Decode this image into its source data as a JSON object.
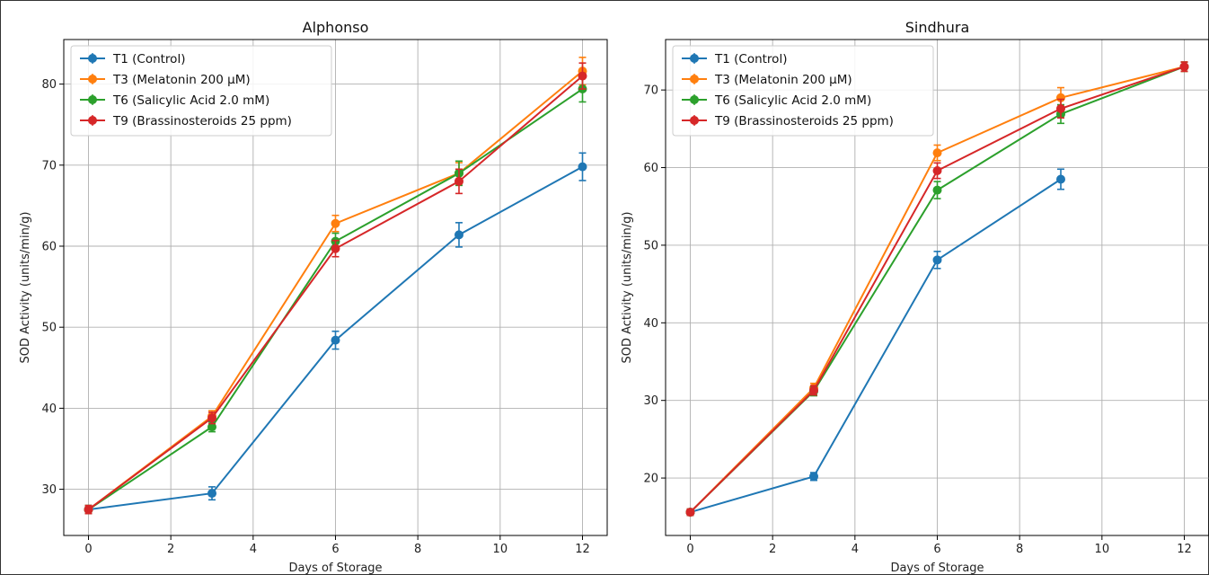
{
  "chart_data": [
    {
      "type": "line",
      "title": "Alphonso",
      "xlabel": "Days of Storage",
      "ylabel": "SOD Activity (units/min/g)",
      "xlim": [
        -0.6,
        12.6
      ],
      "ylim": [
        24.3,
        85.5
      ],
      "xticks": [
        0,
        2,
        4,
        6,
        8,
        10,
        12
      ],
      "yticks": [
        30,
        40,
        50,
        60,
        70,
        80
      ],
      "grid": true,
      "legend": "top-left",
      "series": [
        {
          "name": "T1 (Control)",
          "color": "#1f77b4",
          "x": [
            0,
            3,
            6,
            9,
            12
          ],
          "y": [
            27.5,
            29.5,
            48.4,
            61.4,
            69.8
          ],
          "err": [
            0.5,
            0.8,
            1.1,
            1.5,
            1.7
          ]
        },
        {
          "name": "T3 (Melatonin 200 μM)",
          "color": "#ff7f0e",
          "x": [
            0,
            3,
            6,
            9,
            12
          ],
          "y": [
            27.5,
            39.0,
            62.8,
            69.0,
            81.6
          ],
          "err": [
            0.5,
            0.7,
            1.0,
            1.3,
            1.7
          ]
        },
        {
          "name": "T6 (Salicylic Acid 2.0 mM)",
          "color": "#2ca02c",
          "x": [
            0,
            3,
            6,
            9,
            12
          ],
          "y": [
            27.5,
            37.7,
            60.6,
            69.0,
            79.4
          ],
          "err": [
            0.5,
            0.6,
            1.0,
            1.5,
            1.6
          ]
        },
        {
          "name": "T9 (Brassinosteroids 25 ppm)",
          "color": "#d62728",
          "x": [
            0,
            3,
            6,
            9,
            12
          ],
          "y": [
            27.5,
            38.8,
            59.7,
            68.0,
            81.0
          ],
          "err": [
            0.5,
            0.7,
            1.0,
            1.5,
            1.6
          ]
        }
      ]
    },
    {
      "type": "line",
      "title": "Sindhura",
      "xlabel": "Days of Storage",
      "ylabel": "SOD Activity (units/min/g)",
      "xlim": [
        -0.6,
        12.6
      ],
      "ylim": [
        12.6,
        76.5
      ],
      "xticks": [
        0,
        2,
        4,
        6,
        8,
        10,
        12
      ],
      "yticks": [
        20,
        30,
        40,
        50,
        60,
        70
      ],
      "grid": true,
      "legend": "top-left",
      "series": [
        {
          "name": "T1 (Control)",
          "color": "#1f77b4",
          "x": [
            0,
            3,
            6,
            9
          ],
          "y": [
            15.6,
            20.2,
            48.1,
            58.5
          ],
          "err": [
            0.4,
            0.5,
            1.1,
            1.3
          ]
        },
        {
          "name": "T3 (Melatonin 200 μM)",
          "color": "#ff7f0e",
          "x": [
            0,
            3,
            6,
            9,
            12
          ],
          "y": [
            15.6,
            31.6,
            61.9,
            69.0,
            73.0
          ],
          "err": [
            0.4,
            0.6,
            1.0,
            1.3,
            0.6
          ]
        },
        {
          "name": "T6 (Salicylic Acid 2.0 mM)",
          "color": "#2ca02c",
          "x": [
            0,
            3,
            6,
            9,
            12
          ],
          "y": [
            15.6,
            31.2,
            57.1,
            66.9,
            73.0
          ],
          "err": [
            0.4,
            0.6,
            1.1,
            1.2,
            0.6
          ]
        },
        {
          "name": "T9 (Brassinosteroids 25 ppm)",
          "color": "#d62728",
          "x": [
            0,
            3,
            6,
            9,
            12
          ],
          "y": [
            15.6,
            31.3,
            59.6,
            67.6,
            73.0
          ],
          "err": [
            0.4,
            0.6,
            1.0,
            1.2,
            0.6
          ]
        }
      ]
    }
  ]
}
